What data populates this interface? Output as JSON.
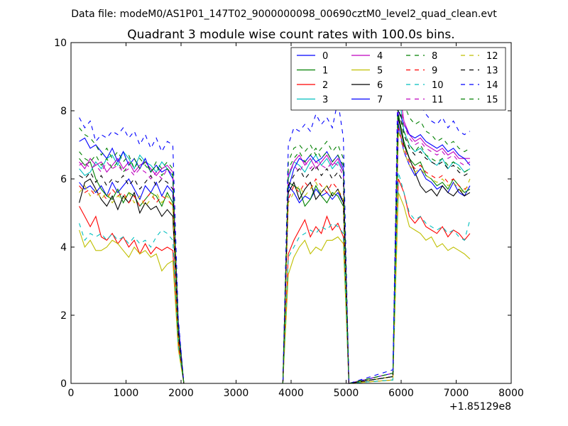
{
  "figure": {
    "suptitle": "Data file: modeM0/AS1P01_147T02_9000000098_00690cztM0_level2_quad_clean.evt",
    "x_offset_label": "+1.85129e8"
  },
  "chart_data": {
    "type": "line",
    "title": "Quadrant 3 module wise count rates with 100.0s bins.",
    "xlabel": "",
    "ylabel": "",
    "xlim": [
      0,
      8000
    ],
    "ylim": [
      0,
      10
    ],
    "xticks": [
      "0",
      "1000",
      "2000",
      "3000",
      "4000",
      "5000",
      "6000",
      "7000",
      "8000"
    ],
    "yticks": [
      "0",
      "2",
      "4",
      "6",
      "8",
      "10"
    ],
    "grid": false,
    "legend": {
      "placement": "top-right",
      "columns": 4
    },
    "x": [
      150,
      250,
      350,
      450,
      550,
      650,
      750,
      850,
      950,
      1050,
      1150,
      1250,
      1350,
      1450,
      1550,
      1650,
      1750,
      1850,
      1950,
      2050,
      3850,
      3950,
      4050,
      4150,
      4250,
      4350,
      4450,
      4550,
      4650,
      4750,
      4850,
      4950,
      5050,
      5850,
      5950,
      6050,
      6150,
      6250,
      6350,
      6450,
      6550,
      6650,
      6750,
      6850,
      6950,
      7050,
      7150,
      7250
    ],
    "series": [
      {
        "name": "0",
        "color": "#0000ff",
        "dash": "solid",
        "values": [
          5.9,
          5.7,
          5.8,
          5.6,
          5.8,
          5.5,
          5.9,
          5.6,
          5.8,
          6.0,
          5.7,
          5.4,
          5.8,
          5.6,
          5.9,
          5.5,
          5.8,
          5.6,
          1.5,
          0,
          0,
          5.8,
          5.6,
          5.3,
          5.5,
          5.4,
          5.7,
          5.5,
          5.6,
          5.4,
          5.6,
          5.3,
          0,
          0.2,
          7.6,
          6.8,
          6.4,
          6.1,
          6.3,
          6.0,
          5.9,
          5.7,
          5.8,
          5.6,
          5.9,
          5.6,
          5.5,
          5.8
        ]
      },
      {
        "name": "1",
        "color": "#008000",
        "dash": "solid",
        "values": [
          6.6,
          6.4,
          6.5,
          6.0,
          5.7,
          5.5,
          5.4,
          5.7,
          5.3,
          5.6,
          5.5,
          5.2,
          5.4,
          5.6,
          5.5,
          5.2,
          5.6,
          5.3,
          1.5,
          0,
          0,
          5.9,
          5.8,
          5.7,
          5.2,
          5.4,
          5.8,
          5.5,
          5.3,
          5.6,
          5.5,
          5.2,
          0,
          0.2,
          7.9,
          7.1,
          6.6,
          6.4,
          6.5,
          6.1,
          6.0,
          5.8,
          5.9,
          5.7,
          6.0,
          5.8,
          5.6,
          5.7
        ]
      },
      {
        "name": "2",
        "color": "#ff0000",
        "dash": "solid",
        "values": [
          5.2,
          4.9,
          4.6,
          4.9,
          4.3,
          4.2,
          4.4,
          4.1,
          4.3,
          4.0,
          4.2,
          3.8,
          4.1,
          3.8,
          4.0,
          3.9,
          4.0,
          3.9,
          1.2,
          0,
          0,
          3.8,
          4.2,
          4.5,
          4.8,
          4.3,
          4.6,
          4.4,
          4.9,
          4.5,
          4.7,
          4.3,
          0,
          0.1,
          6.0,
          5.6,
          4.9,
          4.7,
          4.9,
          4.6,
          4.5,
          4.4,
          4.6,
          4.3,
          4.5,
          4.4,
          4.2,
          4.4
        ]
      },
      {
        "name": "3",
        "color": "#00bfbf",
        "dash": "solid",
        "values": [
          6.3,
          6.1,
          6.2,
          6.5,
          6.3,
          6.6,
          6.7,
          6.4,
          6.8,
          6.6,
          6.3,
          6.7,
          6.5,
          6.4,
          6.2,
          6.5,
          6.3,
          6.1,
          1.6,
          0,
          0,
          6.0,
          6.5,
          6.4,
          6.2,
          6.5,
          6.7,
          6.4,
          6.6,
          6.3,
          6.5,
          6.2,
          0,
          0.2,
          8.6,
          7.4,
          7.0,
          6.8,
          6.9,
          6.7,
          6.5,
          6.4,
          6.6,
          6.3,
          6.5,
          6.4,
          6.2,
          6.3
        ]
      },
      {
        "name": "4",
        "color": "#bf00bf",
        "dash": "solid",
        "values": [
          6.5,
          6.3,
          6.6,
          6.4,
          6.5,
          6.2,
          6.4,
          6.6,
          6.3,
          6.5,
          6.2,
          6.4,
          6.5,
          6.3,
          6.1,
          6.3,
          6.4,
          6.2,
          1.6,
          0,
          0,
          6.1,
          6.5,
          6.7,
          6.4,
          6.6,
          6.3,
          6.5,
          6.7,
          6.4,
          6.6,
          6.2,
          0,
          0.3,
          8.8,
          7.7,
          7.3,
          7.1,
          7.2,
          7.0,
          6.9,
          6.8,
          6.9,
          6.7,
          6.8,
          6.6,
          6.6,
          6.6
        ]
      },
      {
        "name": "5",
        "color": "#bfbf00",
        "dash": "solid",
        "values": [
          4.5,
          4.0,
          4.2,
          3.9,
          3.9,
          4.0,
          4.2,
          4.1,
          3.9,
          3.7,
          4.0,
          3.8,
          3.9,
          3.7,
          3.8,
          3.3,
          3.5,
          3.6,
          1.0,
          0,
          0,
          3.2,
          3.7,
          4.0,
          4.2,
          3.8,
          4.0,
          3.9,
          4.2,
          4.2,
          4.3,
          4.1,
          0,
          0.1,
          5.6,
          5.2,
          4.6,
          4.5,
          4.4,
          4.2,
          4.3,
          4.0,
          4.1,
          3.9,
          4.0,
          3.9,
          3.8,
          3.65
        ]
      },
      {
        "name": "6",
        "color": "#000000",
        "dash": "solid",
        "values": [
          5.3,
          5.9,
          6.0,
          5.7,
          5.4,
          5.2,
          5.5,
          5.1,
          5.5,
          5.3,
          5.6,
          5.0,
          5.3,
          5.1,
          5.2,
          4.9,
          5.1,
          4.9,
          1.4,
          0,
          0,
          5.6,
          5.9,
          5.4,
          5.7,
          5.9,
          5.4,
          5.6,
          5.8,
          5.5,
          5.7,
          5.3,
          0,
          0.2,
          7.8,
          7.0,
          6.6,
          6.2,
          5.8,
          5.6,
          5.7,
          5.5,
          5.8,
          5.6,
          5.5,
          5.7,
          5.5,
          5.6
        ]
      },
      {
        "name": "7",
        "color": "#0000ff",
        "dash": "solid",
        "values": [
          7.1,
          7.2,
          6.9,
          7.0,
          6.8,
          6.6,
          6.9,
          6.5,
          6.8,
          6.4,
          6.6,
          6.3,
          6.6,
          6.2,
          6.4,
          6.2,
          6.3,
          6.0,
          1.8,
          0,
          0,
          5.7,
          6.3,
          6.6,
          6.5,
          6.7,
          6.5,
          6.6,
          6.8,
          6.5,
          6.7,
          6.3,
          0,
          0.3,
          8.0,
          7.6,
          7.3,
          7.2,
          7.3,
          7.1,
          7.0,
          6.9,
          7.0,
          6.8,
          6.9,
          6.7,
          6.6,
          6.4
        ]
      },
      {
        "name": "8",
        "color": "#008000",
        "dash": "dashed",
        "values": [
          7.5,
          7.3,
          7.2,
          7.0,
          6.7,
          6.9,
          6.6,
          6.8,
          6.5,
          6.7,
          6.3,
          6.6,
          6.4,
          6.2,
          6.5,
          6.3,
          6.5,
          6.3,
          1.7,
          0,
          0,
          6.5,
          6.9,
          7.0,
          6.8,
          7.0,
          6.7,
          6.9,
          7.1,
          6.8,
          7.0,
          6.6,
          0,
          0.3,
          9.1,
          8.2,
          7.8,
          7.6,
          7.7,
          7.4,
          7.3,
          7.1,
          7.2,
          7.0,
          7.1,
          6.9,
          6.8,
          6.9
        ]
      },
      {
        "name": "9",
        "color": "#ff0000",
        "dash": "dashed",
        "values": [
          5.8,
          5.6,
          5.7,
          5.5,
          5.6,
          5.4,
          5.7,
          5.5,
          5.6,
          5.3,
          5.5,
          5.2,
          5.4,
          5.6,
          5.3,
          5.5,
          5.4,
          5.2,
          1.4,
          0,
          0,
          5.4,
          5.8,
          5.6,
          5.9,
          5.7,
          6.0,
          5.8,
          5.6,
          5.9,
          5.7,
          5.4,
          0,
          0.2,
          7.5,
          6.9,
          6.5,
          6.3,
          6.4,
          6.2,
          6.1,
          6.0,
          6.1,
          5.9,
          6.0,
          5.8,
          5.7,
          5.8
        ]
      },
      {
        "name": "10",
        "color": "#00bfbf",
        "dash": "dashed",
        "values": [
          4.7,
          4.2,
          4.4,
          4.3,
          4.4,
          4.2,
          4.4,
          4.2,
          4.3,
          4.1,
          4.3,
          4.1,
          4.2,
          4.0,
          4.3,
          4.5,
          4.4,
          4.2,
          1.1,
          0,
          0,
          3.7,
          4.0,
          4.3,
          4.4,
          4.5,
          4.4,
          4.6,
          4.5,
          4.7,
          4.6,
          4.4,
          0,
          0.1,
          6.2,
          5.6,
          5.0,
          4.8,
          4.9,
          4.7,
          4.6,
          4.5,
          4.6,
          4.4,
          4.5,
          4.3,
          4.2,
          4.8
        ]
      },
      {
        "name": "11",
        "color": "#bf00bf",
        "dash": "dashed",
        "values": [
          6.4,
          6.5,
          6.3,
          6.4,
          6.2,
          6.5,
          6.3,
          6.4,
          6.2,
          6.3,
          6.1,
          6.3,
          6.2,
          6.0,
          6.2,
          6.0,
          6.3,
          6.1,
          1.6,
          0,
          0,
          6.2,
          6.4,
          6.2,
          6.5,
          6.3,
          6.5,
          6.4,
          6.3,
          6.5,
          6.4,
          6.1,
          0,
          0.3,
          8.4,
          7.6,
          7.2,
          7.0,
          7.1,
          6.9,
          6.8,
          6.7,
          6.8,
          6.6,
          6.7,
          6.5,
          6.4,
          6.5
        ]
      },
      {
        "name": "12",
        "color": "#bfbf00",
        "dash": "dashed",
        "values": [
          5.6,
          5.8,
          5.5,
          5.7,
          5.4,
          5.6,
          5.3,
          5.5,
          5.4,
          5.6,
          5.3,
          5.5,
          5.2,
          5.4,
          5.6,
          5.3,
          5.5,
          5.2,
          1.4,
          0,
          0,
          5.3,
          5.6,
          5.8,
          5.5,
          5.7,
          5.9,
          5.6,
          5.8,
          5.5,
          5.7,
          5.4,
          0,
          0.2,
          7.4,
          6.8,
          6.4,
          6.2,
          6.3,
          6.1,
          6.0,
          5.9,
          6.0,
          5.8,
          5.9,
          5.7,
          5.6,
          6.0
        ]
      },
      {
        "name": "13",
        "color": "#000000",
        "dash": "dashed",
        "values": [
          6.1,
          6.0,
          6.2,
          5.9,
          6.1,
          5.8,
          6.0,
          5.9,
          6.1,
          5.8,
          6.0,
          5.7,
          5.9,
          6.1,
          5.8,
          6.0,
          5.9,
          5.7,
          1.5,
          0,
          0,
          5.8,
          6.1,
          6.3,
          6.0,
          6.2,
          6.4,
          6.1,
          6.3,
          6.0,
          6.2,
          5.9,
          0,
          0.2,
          8.1,
          7.3,
          6.9,
          6.7,
          6.8,
          6.6,
          6.5,
          6.4,
          6.5,
          6.3,
          6.4,
          6.2,
          6.1,
          6.2
        ]
      },
      {
        "name": "14",
        "color": "#0000ff",
        "dash": "dashed",
        "values": [
          7.8,
          7.5,
          7.7,
          7.1,
          7.3,
          7.2,
          7.4,
          7.3,
          7.5,
          7.2,
          7.4,
          7.0,
          7.3,
          6.9,
          7.2,
          6.8,
          7.1,
          7.0,
          1.9,
          0,
          0,
          7.0,
          7.5,
          7.4,
          7.6,
          7.4,
          7.9,
          7.6,
          7.8,
          7.5,
          8.3,
          7.2,
          0,
          0.4,
          9.7,
          8.8,
          8.3,
          8.0,
          8.2,
          7.9,
          7.7,
          7.6,
          7.8,
          7.5,
          7.7,
          7.4,
          7.3,
          7.4
        ]
      },
      {
        "name": "15",
        "color": "#008000",
        "dash": "dashed",
        "values": [
          6.8,
          6.6,
          6.5,
          6.7,
          6.4,
          6.6,
          6.3,
          6.5,
          6.2,
          6.4,
          6.6,
          6.3,
          6.5,
          6.2,
          6.4,
          6.1,
          6.3,
          6.1,
          1.6,
          0,
          0,
          6.3,
          6.6,
          6.8,
          6.5,
          6.7,
          6.9,
          6.6,
          6.8,
          6.5,
          6.7,
          6.4,
          0,
          0.3,
          8.3,
          7.4,
          7.0,
          6.8,
          7.0,
          6.7,
          6.6,
          6.5,
          6.6,
          6.4,
          6.5,
          6.3,
          6.2,
          6.3
        ]
      }
    ]
  }
}
